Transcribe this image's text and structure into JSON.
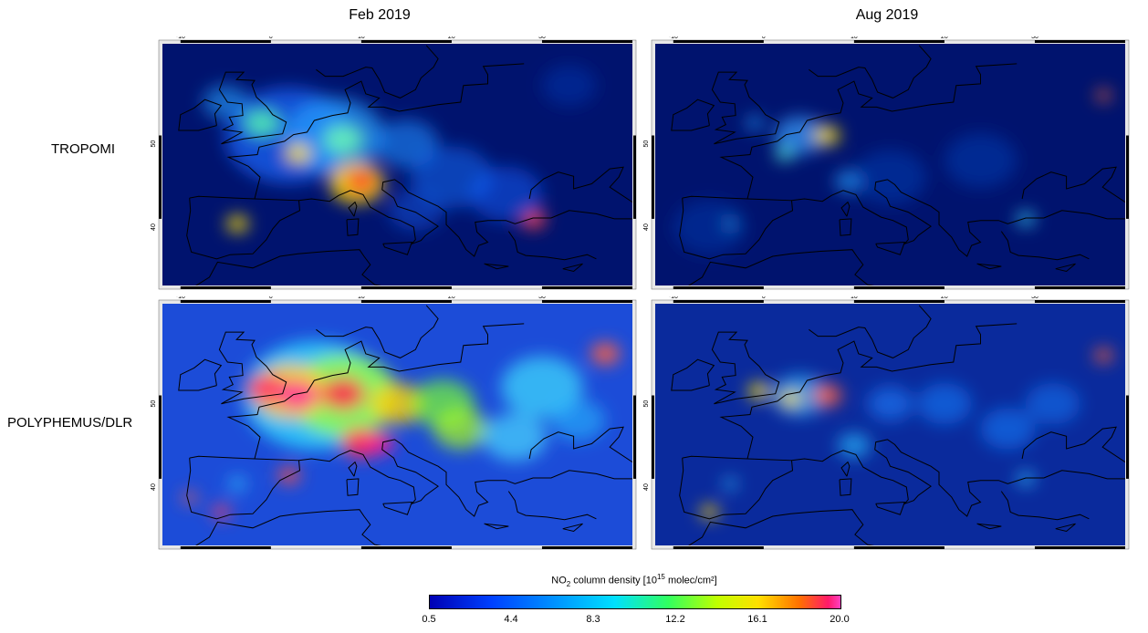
{
  "columns": {
    "left": "Feb 2019",
    "right": "Aug 2019"
  },
  "rows": {
    "top": "TROPOMI",
    "bottom": "POLYPHEMUS/DLR"
  },
  "axes": {
    "lon_ticks": [
      "-10",
      "0",
      "10",
      "20",
      "30"
    ],
    "lat_ticks": [
      "50",
      "40"
    ]
  },
  "colorbar": {
    "title_prefix": "NO",
    "title_sub": "2",
    "title_mid": " column density [10",
    "title_sup": "15",
    "title_suffix": " molec/cm²]",
    "ticks": [
      "0.5",
      "4.4",
      "8.3",
      "12.2",
      "16.1",
      "20.0"
    ],
    "range": [
      0.5,
      20.0
    ]
  },
  "panels": [
    {
      "row": "TROPOMI",
      "column": "Feb 2019"
    },
    {
      "row": "TROPOMI",
      "column": "Aug 2019"
    },
    {
      "row": "POLYPHEMUS/DLR",
      "column": "Feb 2019"
    },
    {
      "row": "POLYPHEMUS/DLR",
      "column": "Aug 2019"
    }
  ]
}
